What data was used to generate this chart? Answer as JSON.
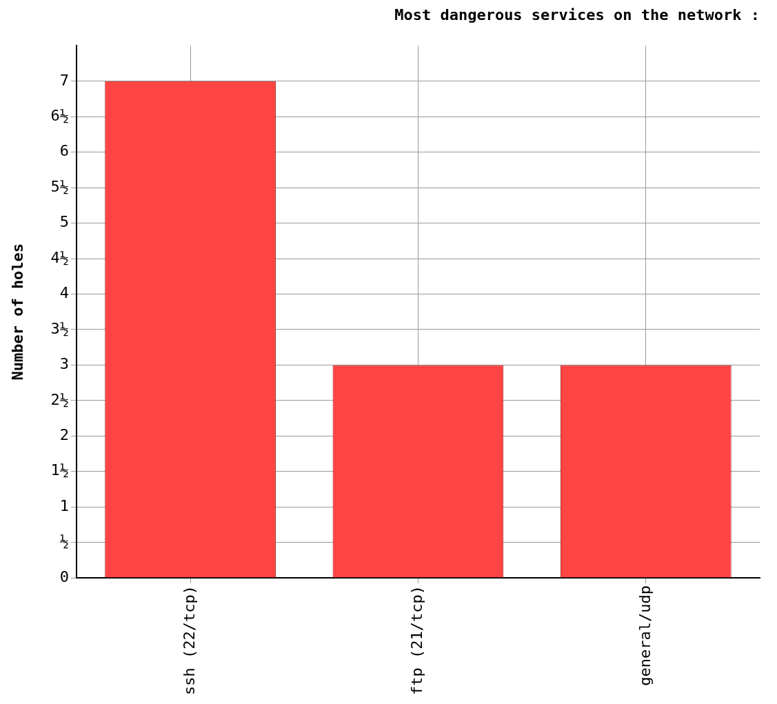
{
  "chart_data": {
    "type": "bar",
    "title": "Most dangerous services on the network :",
    "ylabel": "Number of holes",
    "categories": [
      "ssh (22/tcp)",
      "ftp (21/tcp)",
      "general/udp"
    ],
    "values": [
      7,
      3,
      3
    ],
    "color": "#ff4444",
    "ylim": [
      0,
      7.5
    ],
    "yticks": [
      0,
      {
        "value": 0.5,
        "label": "½"
      },
      1,
      {
        "value": 1.5,
        "label": "1½"
      },
      2,
      {
        "value": 2.5,
        "label": "2½"
      },
      3,
      {
        "value": 3.5,
        "label": "3½"
      },
      4,
      {
        "value": 4.5,
        "label": "4½"
      },
      5,
      {
        "value": 5.5,
        "label": "5½"
      },
      6,
      {
        "value": 6.5,
        "label": "6½"
      },
      7
    ],
    "grid": true,
    "legend": false
  }
}
